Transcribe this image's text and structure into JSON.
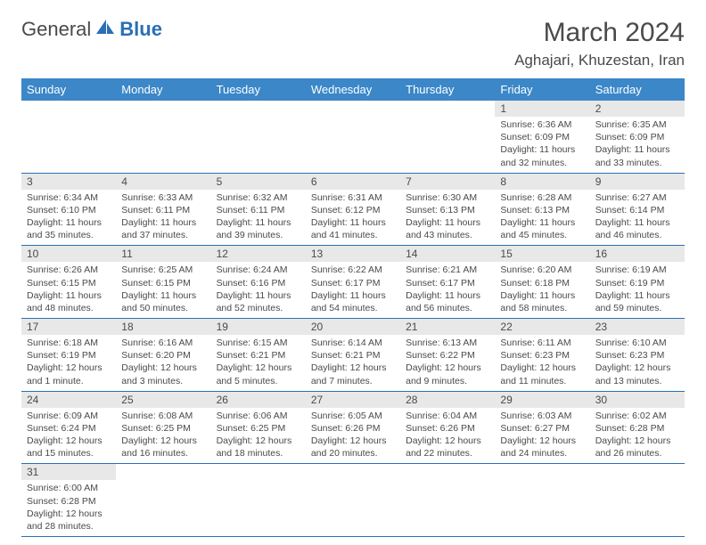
{
  "logo": {
    "text1": "General",
    "text2": "Blue"
  },
  "title": "March 2024",
  "location": "Aghajari, Khuzestan, Iran",
  "weekdays": [
    "Sunday",
    "Monday",
    "Tuesday",
    "Wednesday",
    "Thursday",
    "Friday",
    "Saturday"
  ],
  "header_bg": "#3b87c8",
  "daynum_bg": "#e8e8e8",
  "border_color": "#2a6fb5",
  "weeks": [
    [
      {
        "day": "",
        "lines": []
      },
      {
        "day": "",
        "lines": []
      },
      {
        "day": "",
        "lines": []
      },
      {
        "day": "",
        "lines": []
      },
      {
        "day": "",
        "lines": []
      },
      {
        "day": "1",
        "lines": [
          "Sunrise: 6:36 AM",
          "Sunset: 6:09 PM",
          "Daylight: 11 hours and 32 minutes."
        ]
      },
      {
        "day": "2",
        "lines": [
          "Sunrise: 6:35 AM",
          "Sunset: 6:09 PM",
          "Daylight: 11 hours and 33 minutes."
        ]
      }
    ],
    [
      {
        "day": "3",
        "lines": [
          "Sunrise: 6:34 AM",
          "Sunset: 6:10 PM",
          "Daylight: 11 hours and 35 minutes."
        ]
      },
      {
        "day": "4",
        "lines": [
          "Sunrise: 6:33 AM",
          "Sunset: 6:11 PM",
          "Daylight: 11 hours and 37 minutes."
        ]
      },
      {
        "day": "5",
        "lines": [
          "Sunrise: 6:32 AM",
          "Sunset: 6:11 PM",
          "Daylight: 11 hours and 39 minutes."
        ]
      },
      {
        "day": "6",
        "lines": [
          "Sunrise: 6:31 AM",
          "Sunset: 6:12 PM",
          "Daylight: 11 hours and 41 minutes."
        ]
      },
      {
        "day": "7",
        "lines": [
          "Sunrise: 6:30 AM",
          "Sunset: 6:13 PM",
          "Daylight: 11 hours and 43 minutes."
        ]
      },
      {
        "day": "8",
        "lines": [
          "Sunrise: 6:28 AM",
          "Sunset: 6:13 PM",
          "Daylight: 11 hours and 45 minutes."
        ]
      },
      {
        "day": "9",
        "lines": [
          "Sunrise: 6:27 AM",
          "Sunset: 6:14 PM",
          "Daylight: 11 hours and 46 minutes."
        ]
      }
    ],
    [
      {
        "day": "10",
        "lines": [
          "Sunrise: 6:26 AM",
          "Sunset: 6:15 PM",
          "Daylight: 11 hours and 48 minutes."
        ]
      },
      {
        "day": "11",
        "lines": [
          "Sunrise: 6:25 AM",
          "Sunset: 6:15 PM",
          "Daylight: 11 hours and 50 minutes."
        ]
      },
      {
        "day": "12",
        "lines": [
          "Sunrise: 6:24 AM",
          "Sunset: 6:16 PM",
          "Daylight: 11 hours and 52 minutes."
        ]
      },
      {
        "day": "13",
        "lines": [
          "Sunrise: 6:22 AM",
          "Sunset: 6:17 PM",
          "Daylight: 11 hours and 54 minutes."
        ]
      },
      {
        "day": "14",
        "lines": [
          "Sunrise: 6:21 AM",
          "Sunset: 6:17 PM",
          "Daylight: 11 hours and 56 minutes."
        ]
      },
      {
        "day": "15",
        "lines": [
          "Sunrise: 6:20 AM",
          "Sunset: 6:18 PM",
          "Daylight: 11 hours and 58 minutes."
        ]
      },
      {
        "day": "16",
        "lines": [
          "Sunrise: 6:19 AM",
          "Sunset: 6:19 PM",
          "Daylight: 11 hours and 59 minutes."
        ]
      }
    ],
    [
      {
        "day": "17",
        "lines": [
          "Sunrise: 6:18 AM",
          "Sunset: 6:19 PM",
          "Daylight: 12 hours and 1 minute."
        ]
      },
      {
        "day": "18",
        "lines": [
          "Sunrise: 6:16 AM",
          "Sunset: 6:20 PM",
          "Daylight: 12 hours and 3 minutes."
        ]
      },
      {
        "day": "19",
        "lines": [
          "Sunrise: 6:15 AM",
          "Sunset: 6:21 PM",
          "Daylight: 12 hours and 5 minutes."
        ]
      },
      {
        "day": "20",
        "lines": [
          "Sunrise: 6:14 AM",
          "Sunset: 6:21 PM",
          "Daylight: 12 hours and 7 minutes."
        ]
      },
      {
        "day": "21",
        "lines": [
          "Sunrise: 6:13 AM",
          "Sunset: 6:22 PM",
          "Daylight: 12 hours and 9 minutes."
        ]
      },
      {
        "day": "22",
        "lines": [
          "Sunrise: 6:11 AM",
          "Sunset: 6:23 PM",
          "Daylight: 12 hours and 11 minutes."
        ]
      },
      {
        "day": "23",
        "lines": [
          "Sunrise: 6:10 AM",
          "Sunset: 6:23 PM",
          "Daylight: 12 hours and 13 minutes."
        ]
      }
    ],
    [
      {
        "day": "24",
        "lines": [
          "Sunrise: 6:09 AM",
          "Sunset: 6:24 PM",
          "Daylight: 12 hours and 15 minutes."
        ]
      },
      {
        "day": "25",
        "lines": [
          "Sunrise: 6:08 AM",
          "Sunset: 6:25 PM",
          "Daylight: 12 hours and 16 minutes."
        ]
      },
      {
        "day": "26",
        "lines": [
          "Sunrise: 6:06 AM",
          "Sunset: 6:25 PM",
          "Daylight: 12 hours and 18 minutes."
        ]
      },
      {
        "day": "27",
        "lines": [
          "Sunrise: 6:05 AM",
          "Sunset: 6:26 PM",
          "Daylight: 12 hours and 20 minutes."
        ]
      },
      {
        "day": "28",
        "lines": [
          "Sunrise: 6:04 AM",
          "Sunset: 6:26 PM",
          "Daylight: 12 hours and 22 minutes."
        ]
      },
      {
        "day": "29",
        "lines": [
          "Sunrise: 6:03 AM",
          "Sunset: 6:27 PM",
          "Daylight: 12 hours and 24 minutes."
        ]
      },
      {
        "day": "30",
        "lines": [
          "Sunrise: 6:02 AM",
          "Sunset: 6:28 PM",
          "Daylight: 12 hours and 26 minutes."
        ]
      }
    ],
    [
      {
        "day": "31",
        "lines": [
          "Sunrise: 6:00 AM",
          "Sunset: 6:28 PM",
          "Daylight: 12 hours and 28 minutes."
        ]
      },
      {
        "day": "",
        "lines": []
      },
      {
        "day": "",
        "lines": []
      },
      {
        "day": "",
        "lines": []
      },
      {
        "day": "",
        "lines": []
      },
      {
        "day": "",
        "lines": []
      },
      {
        "day": "",
        "lines": []
      }
    ]
  ]
}
